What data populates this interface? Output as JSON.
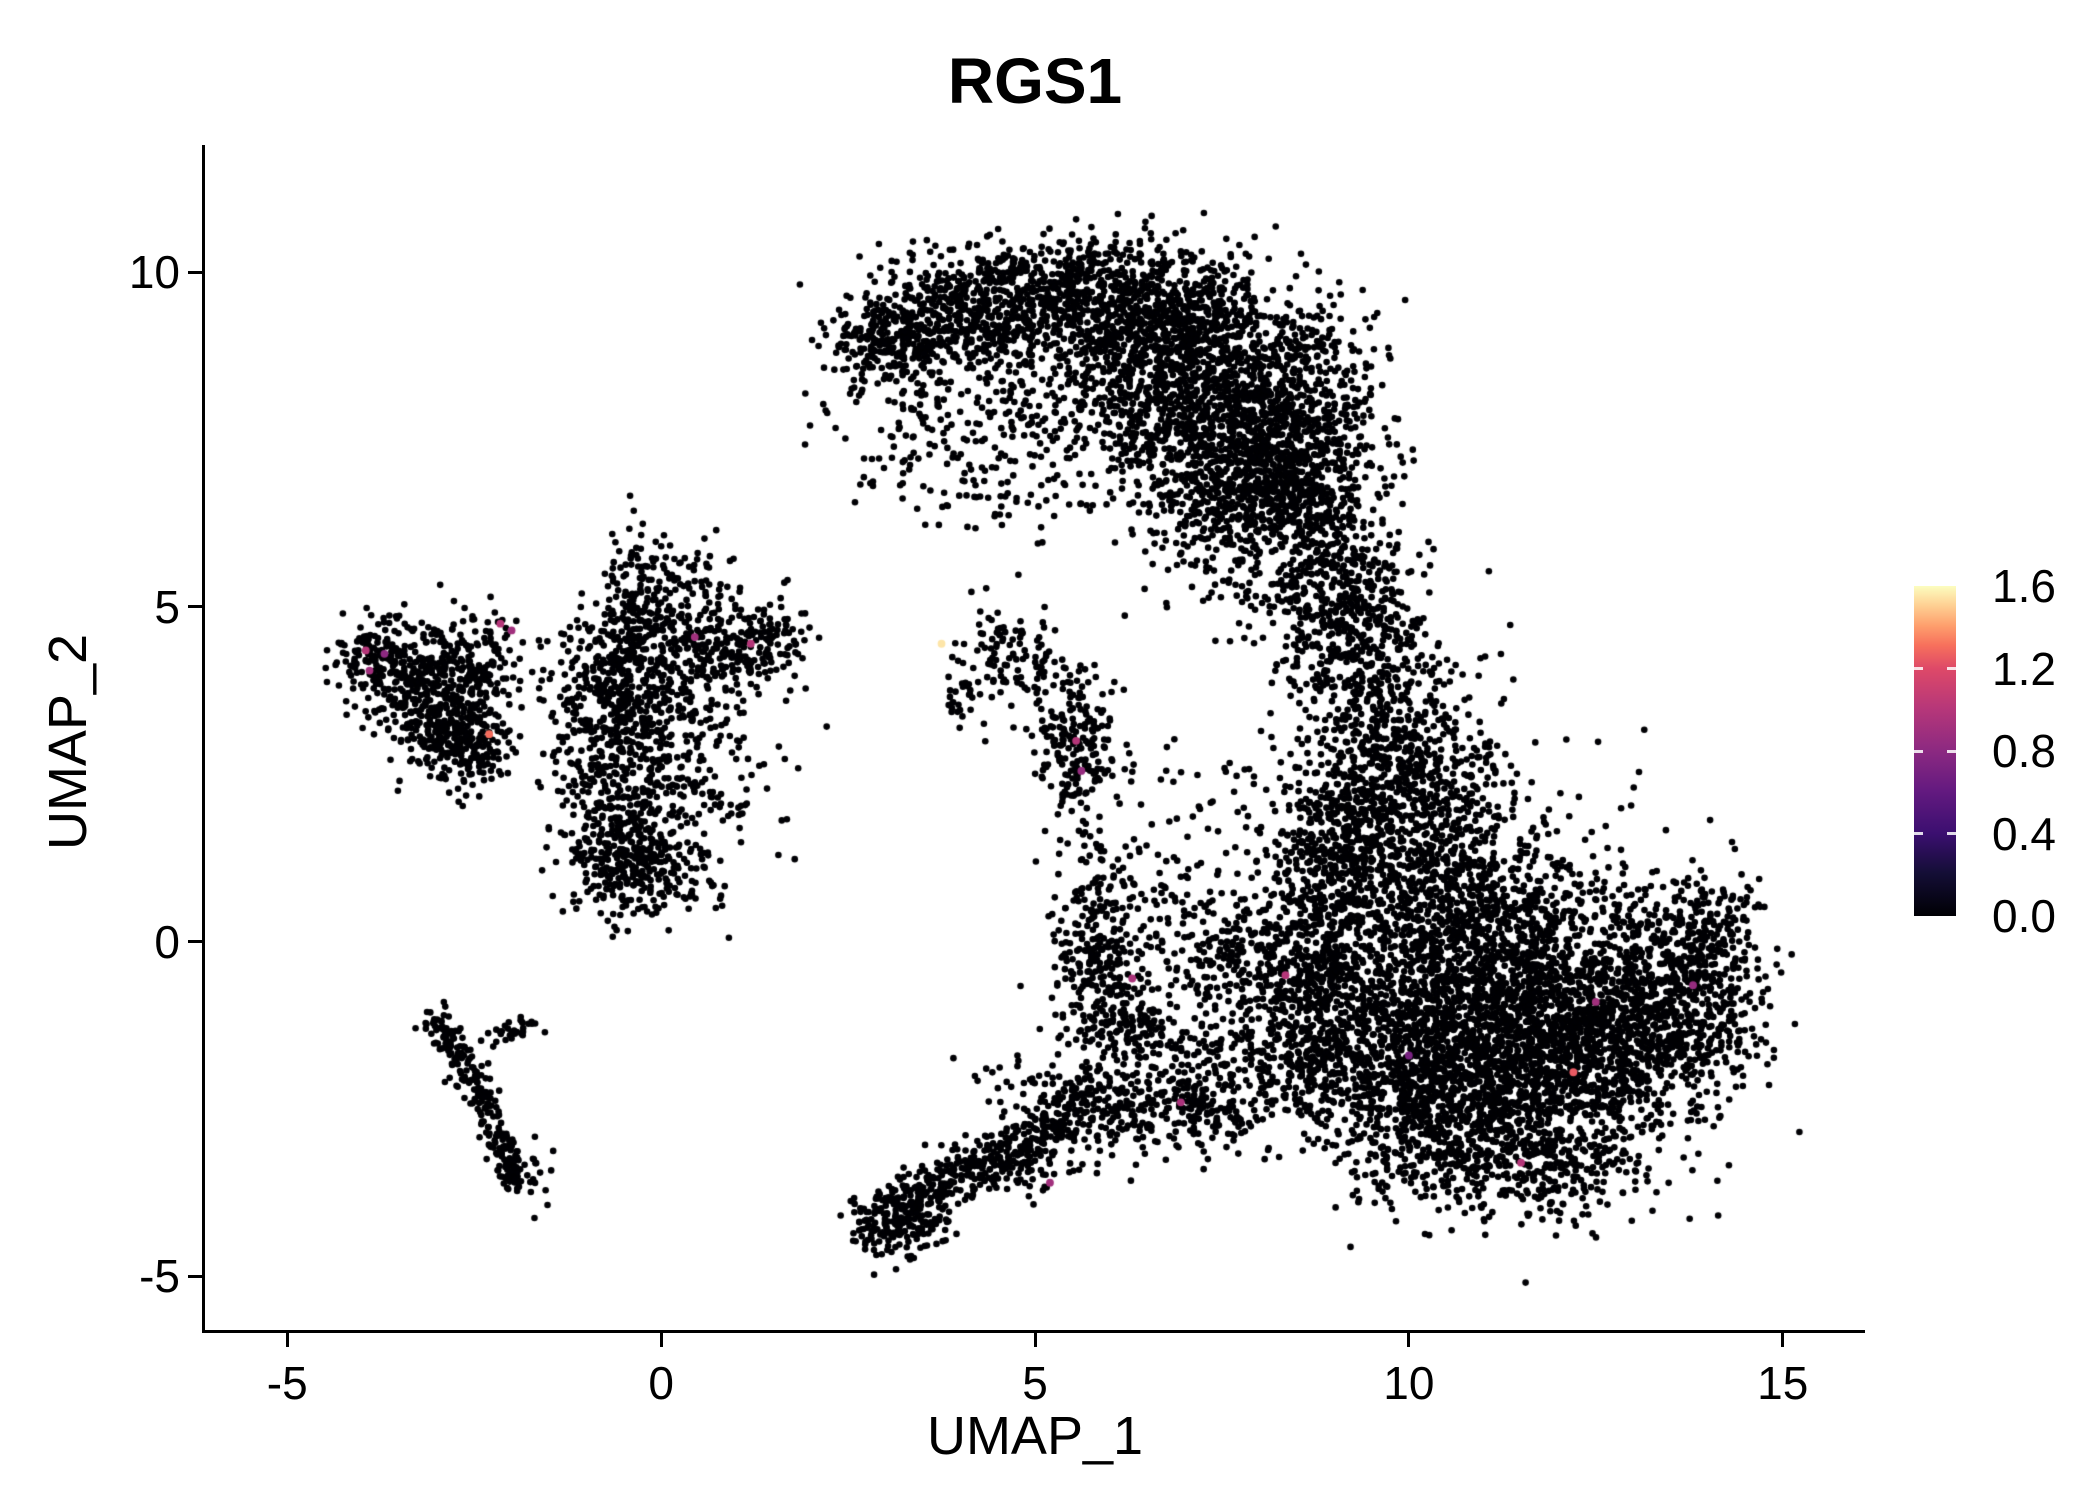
{
  "chart_data": {
    "type": "scatter",
    "title": "RGS1",
    "xlabel": "UMAP_1",
    "ylabel": "UMAP_2",
    "xlim": [
      -6.1,
      16.1
    ],
    "ylim": [
      -5.8,
      11.9
    ],
    "x_ticks": [
      -5,
      0,
      5,
      10,
      15
    ],
    "x_tick_labels": [
      "-5",
      "0",
      "5",
      "10",
      "15"
    ],
    "y_ticks": [
      -5,
      0,
      5,
      10
    ],
    "y_tick_labels": [
      "-5",
      "0",
      "5",
      "10"
    ],
    "grid": false,
    "legend_position": "right",
    "point_color": "#000004",
    "point_radius_px": 3.3,
    "colorbar": {
      "min": 0.0,
      "max": 1.6,
      "ticks": [
        1.6,
        1.2,
        0.8,
        0.4,
        0.0
      ],
      "tick_labels": [
        "1.6",
        "1.2",
        "0.8",
        "0.4",
        "0.0"
      ],
      "colormap": "magma",
      "stops": [
        [
          0,
          "#000004"
        ],
        [
          0.13,
          "#140e36"
        ],
        [
          0.25,
          "#3b0f70"
        ],
        [
          0.38,
          "#641a80"
        ],
        [
          0.5,
          "#8c2981"
        ],
        [
          0.63,
          "#b73779"
        ],
        [
          0.75,
          "#de4968"
        ],
        [
          0.82,
          "#f7705c"
        ],
        [
          0.88,
          "#fe9f6d"
        ],
        [
          0.94,
          "#fecf92"
        ],
        [
          1,
          "#fcfdbf"
        ]
      ]
    },
    "seed": 1234,
    "clusters": [
      [
        3.1,
        8.9,
        0.45,
        0.35,
        260
      ],
      [
        4.2,
        9.4,
        0.8,
        0.45,
        480
      ],
      [
        5.6,
        9.8,
        0.9,
        0.4,
        430
      ],
      [
        6.6,
        9.3,
        0.7,
        0.5,
        430
      ],
      [
        7.5,
        8.6,
        0.8,
        0.7,
        700
      ],
      [
        8.3,
        7.5,
        0.6,
        0.8,
        700
      ],
      [
        7.7,
        6.7,
        0.7,
        0.5,
        380
      ],
      [
        8.8,
        6.2,
        0.45,
        0.8,
        280
      ],
      [
        5.9,
        8.4,
        1.1,
        0.6,
        240
      ],
      [
        4.4,
        7.8,
        0.9,
        0.6,
        130
      ],
      [
        6.8,
        7.6,
        0.5,
        0.6,
        240
      ],
      [
        3.5,
        7.1,
        0.5,
        0.6,
        55
      ],
      [
        4.7,
        6.7,
        0.6,
        0.5,
        50
      ],
      [
        9.3,
        5.2,
        0.35,
        0.6,
        140
      ],
      [
        9.6,
        3.9,
        0.5,
        0.8,
        330
      ],
      [
        8.8,
        4.5,
        0.4,
        0.5,
        110
      ],
      [
        7.9,
        5.6,
        0.7,
        0.45,
        100
      ],
      [
        10.1,
        2.5,
        0.7,
        0.7,
        430
      ],
      [
        9.6,
        1.2,
        0.6,
        0.8,
        380
      ],
      [
        10.6,
        0.3,
        0.8,
        0.9,
        620
      ],
      [
        11.6,
        -0.5,
        1.1,
        1.0,
        1100
      ],
      [
        12.6,
        -1.5,
        0.9,
        0.8,
        800
      ],
      [
        11.2,
        -2.0,
        1.0,
        0.7,
        800
      ],
      [
        13.6,
        -0.8,
        0.55,
        0.65,
        400
      ],
      [
        14.15,
        0.2,
        0.3,
        0.45,
        120
      ],
      [
        10.3,
        -3.0,
        0.8,
        0.5,
        300
      ],
      [
        12.0,
        -3.3,
        0.8,
        0.45,
        280
      ],
      [
        9.1,
        -1.1,
        0.5,
        0.8,
        260
      ],
      [
        9.1,
        1.9,
        0.45,
        0.6,
        200
      ],
      [
        10.0,
        -1.5,
        0.7,
        0.8,
        420
      ],
      [
        -3.8,
        4.25,
        0.28,
        0.3,
        130
      ],
      [
        -3.3,
        3.8,
        0.35,
        0.4,
        190
      ],
      [
        -2.8,
        3.4,
        0.35,
        0.5,
        230
      ],
      [
        -2.55,
        4.2,
        0.35,
        0.35,
        140
      ],
      [
        -2.6,
        2.9,
        0.3,
        0.35,
        130
      ],
      [
        -0.35,
        4.4,
        0.28,
        0.8,
        320
      ],
      [
        -0.5,
        1.4,
        0.4,
        0.5,
        310
      ],
      [
        0.1,
        3.3,
        0.5,
        0.7,
        230
      ],
      [
        0.8,
        4.4,
        0.5,
        0.3,
        170
      ],
      [
        1.4,
        4.5,
        0.3,
        0.28,
        85
      ],
      [
        -0.8,
        2.7,
        0.4,
        0.55,
        160
      ],
      [
        0.3,
        5.3,
        0.4,
        0.35,
        100
      ],
      [
        -1.0,
        3.8,
        0.3,
        0.45,
        100
      ],
      [
        0.3,
        2.3,
        0.7,
        0.7,
        100
      ],
      [
        -0.1,
        0.95,
        0.5,
        0.3,
        110
      ],
      [
        4.7,
        4.3,
        0.35,
        0.35,
        85
      ],
      [
        4.1,
        3.7,
        0.25,
        0.25,
        32
      ],
      [
        5.55,
        2.9,
        0.28,
        0.5,
        160
      ],
      [
        5.3,
        3.7,
        0.25,
        0.3,
        55
      ],
      [
        3.25,
        -4.0,
        0.3,
        0.3,
        180
      ],
      [
        4.6,
        -3.3,
        0.5,
        0.25,
        110
      ],
      [
        5.8,
        -2.6,
        0.45,
        0.3,
        120
      ],
      [
        6.6,
        -2.45,
        0.5,
        0.3,
        130
      ],
      [
        7.4,
        -2.5,
        0.4,
        0.3,
        85
      ],
      [
        5.1,
        -2.1,
        0.6,
        0.3,
        55
      ],
      [
        2.9,
        -4.35,
        0.25,
        0.2,
        55
      ],
      [
        5.85,
        -0.3,
        0.3,
        0.7,
        240
      ],
      [
        6.3,
        -1.3,
        0.4,
        0.5,
        140
      ],
      [
        7.0,
        0.2,
        0.6,
        0.7,
        110
      ],
      [
        7.9,
        -0.4,
        0.5,
        0.6,
        190
      ],
      [
        8.5,
        -0.7,
        0.4,
        0.7,
        240
      ],
      [
        8.6,
        -1.9,
        0.5,
        0.5,
        130
      ],
      [
        7.3,
        -1.7,
        0.5,
        0.4,
        85
      ],
      [
        6.9,
        1.7,
        0.8,
        0.9,
        65
      ],
      [
        8.8,
        0.7,
        0.4,
        0.8,
        150
      ],
      [
        5.6,
        1.1,
        0.3,
        0.5,
        35
      ],
      [
        -1.75,
        -3.45,
        0.15,
        0.3,
        22
      ]
    ],
    "line_segments": [
      [
        -3.0,
        -1.1,
        -2.35,
        -2.4,
        130,
        0.12
      ],
      [
        -2.35,
        -2.4,
        -1.95,
        -3.65,
        110,
        0.1
      ],
      [
        -2.3,
        -1.5,
        -1.7,
        -1.2,
        32,
        0.08
      ],
      [
        3.4,
        -3.85,
        5.5,
        -2.7,
        230,
        0.18
      ]
    ],
    "highlight_points": [
      [
        -3.95,
        4.35,
        1.0
      ],
      [
        -3.9,
        4.05,
        0.9
      ],
      [
        -3.7,
        4.3,
        0.8
      ],
      [
        -2.15,
        4.75,
        1.0
      ],
      [
        -2.3,
        3.1,
        1.3
      ],
      [
        -2.0,
        4.65,
        0.9
      ],
      [
        0.45,
        4.55,
        0.9
      ],
      [
        1.2,
        4.45,
        1.0
      ],
      [
        3.75,
        4.45,
        1.55
      ],
      [
        5.55,
        3.0,
        1.0
      ],
      [
        5.62,
        2.55,
        0.85
      ],
      [
        6.3,
        -0.55,
        0.95
      ],
      [
        8.35,
        -0.5,
        1.0
      ],
      [
        5.2,
        -3.6,
        0.9
      ],
      [
        6.95,
        -2.4,
        0.95
      ],
      [
        12.5,
        -0.9,
        0.9
      ],
      [
        13.8,
        -0.65,
        0.85
      ],
      [
        12.2,
        -1.95,
        1.25
      ],
      [
        11.5,
        -3.3,
        1.0
      ],
      [
        10.0,
        -1.7,
        0.7
      ]
    ]
  }
}
